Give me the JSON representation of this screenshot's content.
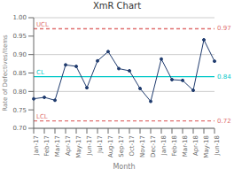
{
  "chart_data": {
    "type": "line",
    "title": "XmR Chart",
    "x_label": "Month",
    "y_label": "Rate of Defectives/Items",
    "categories": [
      "Jan-17",
      "Feb-17",
      "Mar-17",
      "Apr-17",
      "May-17",
      "Jun-17",
      "Jul-17",
      "Aug-17",
      "Sep-17",
      "Oct-17",
      "Nov-17",
      "Dec-17",
      "Jan-18",
      "Feb-18",
      "Mar-18",
      "Apr-18",
      "May-18",
      "Jun-18"
    ],
    "values": [
      0.78,
      0.784,
      0.776,
      0.872,
      0.868,
      0.81,
      0.883,
      0.908,
      0.862,
      0.856,
      0.808,
      0.773,
      0.888,
      0.832,
      0.83,
      0.803,
      0.94,
      0.882
    ],
    "color": "#1F3B6E",
    "marker": "circle",
    "ylim": [
      0.7,
      1.0
    ],
    "yticks": [
      {
        "value": 0.7,
        "label": "0.70"
      },
      {
        "value": 0.75,
        "label": "0.75"
      },
      {
        "value": 0.8,
        "label": "0.80"
      },
      {
        "value": 0.85,
        "label": "0.85"
      },
      {
        "value": 0.9,
        "label": "0.90"
      },
      {
        "value": 0.95,
        "label": "0.95"
      },
      {
        "value": 1.0,
        "label": "1.00"
      }
    ],
    "grid": true,
    "annotations": [
      {
        "name": "UCL",
        "y": 0.97,
        "label": "0.97",
        "color": "#E07070",
        "line_style": "dashed"
      },
      {
        "name": "CL",
        "y": 0.84,
        "label": "0.84",
        "color": "#00C8C8",
        "line_style": "solid"
      },
      {
        "name": "LCL",
        "y": 0.72,
        "label": "0.72",
        "color": "#E07070",
        "line_style": "dashed"
      }
    ]
  }
}
